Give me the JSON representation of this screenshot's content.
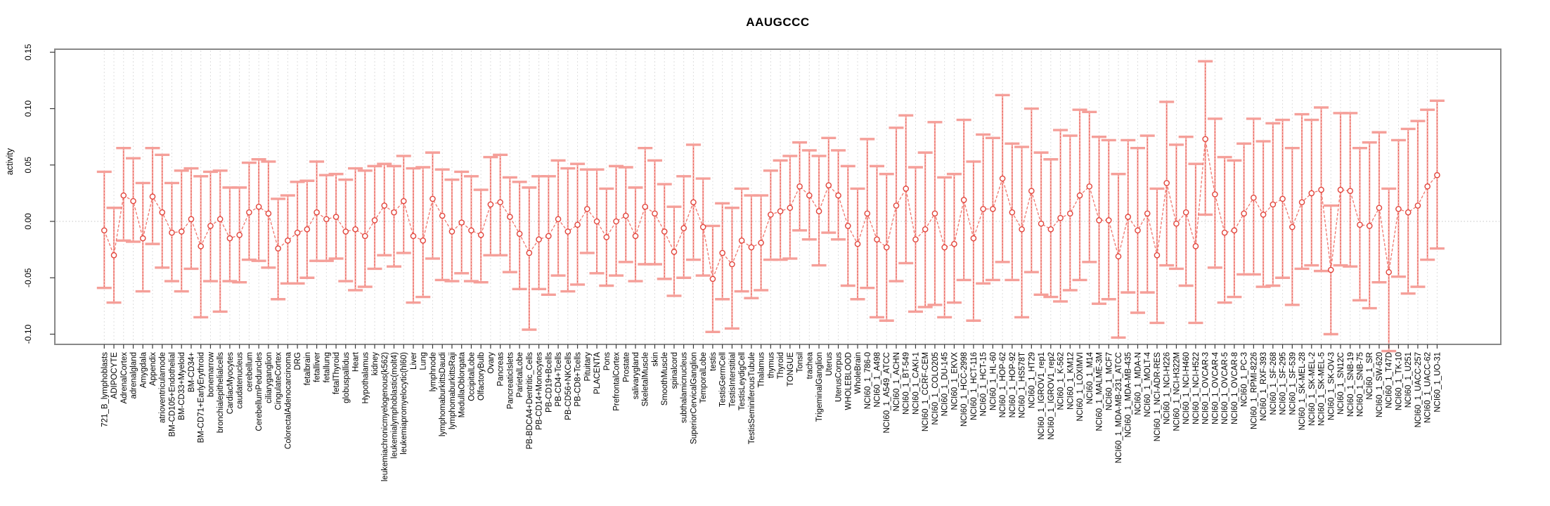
{
  "window": {
    "background": "#ffffff"
  },
  "chart_data": {
    "type": "scatter",
    "subtype": "error-bar-plot",
    "title": "AAUGCCC",
    "xlabel": "",
    "ylabel": "activity",
    "legend": "none",
    "grid": "light dashed vertical gridline per category; dotted horizontal line at 0",
    "marker": "open-circle connected by dashed red line, salmon error bars with caps",
    "ylim": [
      -0.109,
      0.153
    ],
    "ytick_values": [
      0.15,
      0.1,
      0.05,
      0.0,
      -0.05,
      -0.1
    ],
    "ytick_labels": [
      "0.15",
      "0.10",
      "0.05",
      "0.00",
      "-0.05",
      "-0.10"
    ],
    "x_label_rotation_deg": 90,
    "categories": [
      "721_B_lymphoblasts",
      "ADIPOCYTE",
      "AdrenalCortex",
      "adrenalgland",
      "Amygdala",
      "Appendix",
      "atrioventricularnode",
      "BM-CD105+Endothelial",
      "BM-CD33+Myeloid",
      "BM-CD34+",
      "BM-CD71+EarlyErythroid",
      "bonemarrow",
      "bronchialepithelialcells",
      "CardiacMyocytes",
      "caudatenucleus",
      "cerebellum",
      "CerebellumPeduncles",
      "ciliaryganglion",
      "CingulateCortex",
      "ColorectalAdenocarcinoma",
      "DRG",
      "fetalbrain",
      "fetalliver",
      "fetallung",
      "fetalThyroid",
      "globuspallidus",
      "Heart",
      "Hypothalamus",
      "kidney",
      "leukemiachronicmyelogenous(k562)",
      "leukemialymphoblastic(molt4)",
      "leukemiapromyelocytic(hl60)",
      "Liver",
      "Lung",
      "lymphnode",
      "lymphomaburkittsDaudi",
      "lymphomaburkittsRaji",
      "MedullaOblongata",
      "OccipitalLobe",
      "OlfactoryBulb",
      "Ovary",
      "Pancreas",
      "PancreaticIslets",
      "ParietalLobe",
      "PB-BDCA4+Dentritic_Cells",
      "PB-CD14+Monocytes",
      "PB-CD19+Bcells",
      "PB-CD4+Tcells",
      "PB-CD56+NKCells",
      "PB-CD8+Tcells",
      "Pituitary",
      "PLACENTA",
      "Pons",
      "PrefrontalCortex",
      "Prostate",
      "salivarygland",
      "SkeletalMuscle",
      "skin",
      "SmoothMuscle",
      "spinalcord",
      "subthalamicnucleus",
      "SuperiorCervicalGanglion",
      "TemporalLobe",
      "testis",
      "TestisGermCell",
      "TestisInterstitial",
      "TestisLeydigCell",
      "TestisSeminiferousTubule",
      "Thalamus",
      "thymus",
      "Thyroid",
      "TONGUE",
      "Tonsil",
      "trachea",
      "TrigeminalGanglion",
      "Uterus",
      "UterusCorpus",
      "WHOLEBLOOD",
      "WholeBrain",
      "NCI60_1_786-0",
      "NCI60_1_A498",
      "NCI60_1_A549_ATCC",
      "NCI60_1_ACHN",
      "NCI60_1_BT-549",
      "NCI60_1_CAKI-1",
      "NCI60_1_CCRF-CEM",
      "NCI60_1_COLO205",
      "NCI60_1_DU-145",
      "NCI60_1_EKVX",
      "NCI60_1_HCC-2998",
      "NCI60_1_HCT-116",
      "NCI60_1_HCT-15",
      "NCI60_1_HL-60",
      "NCI60_1_HOP-62",
      "NCI60_1_HOP-92",
      "NCI60_1_HS578T",
      "NCI60_1_HT29",
      "NCI60_1_IGROV1_rep1",
      "NCI60_1_IGROV1_rep2",
      "NCI60_1_K-562",
      "NCI60_1_KM12",
      "NCI60_1_LOXIMVI",
      "NCI60_1_M14",
      "NCI60_1_MALME-3M",
      "NCI60_1_MCF7",
      "NCI60_1_MDA-MB-231_ATCC",
      "NCI60_1_MDA-MB-435",
      "NCI60_1_MDA-N",
      "NCI60_1_MOLT-4",
      "NCI60_1_NCI-ADR-RES",
      "NCI60_1_NCI-H226",
      "NCI60_1_NCI-H322M",
      "NCI60_1_NCI-H460",
      "NCI60_1_NCI-H522",
      "NCI60_1_OVCAR-3",
      "NCI60_1_OVCAR-4",
      "NCI60_1_OVCAR-5",
      "NCI60_1_OVCAR-8",
      "NCI60_1_PC-3",
      "NCI60_1_RPMI-8226",
      "NCI60_1_RXF-393",
      "NCI60_1_SF-268",
      "NCI60_1_SF-295",
      "NCI60_1_SF-539",
      "NCI60_1_SK-MEL-28",
      "NCI60_1_SK-MEL-2",
      "NCI60_1_SK-MEL-5",
      "NCI60_1_SK-OV-3",
      "NCI60_1_SN12C",
      "NCI60_1_SNB-19",
      "NCI60_1_SNB-75",
      "NCI60_1_SR",
      "NCI60_1_SW-620",
      "NCI60_1_T47D",
      "NCI60_1_TK-10",
      "NCI60_1_U251",
      "NCI60_1_UACC-257",
      "NCI60_1_UACC-62",
      "NCI60_1_UO-31"
    ],
    "series": [
      {
        "name": "activity",
        "mean": [
          -0.008,
          -0.03,
          0.023,
          0.018,
          -0.015,
          0.022,
          0.008,
          -0.01,
          -0.009,
          0.002,
          -0.022,
          -0.004,
          0.002,
          -0.015,
          -0.012,
          0.008,
          0.013,
          0.007,
          -0.024,
          -0.017,
          -0.01,
          -0.007,
          0.008,
          0.002,
          0.004,
          -0.009,
          -0.007,
          -0.013,
          0.001,
          0.014,
          0.008,
          0.018,
          -0.013,
          -0.017,
          0.02,
          0.005,
          -0.009,
          -0.001,
          -0.008,
          -0.012,
          0.015,
          0.017,
          0.004,
          -0.011,
          -0.028,
          -0.016,
          -0.013,
          0.002,
          -0.009,
          -0.003,
          0.011,
          0.0,
          -0.014,
          0.0,
          0.005,
          -0.013,
          0.013,
          0.007,
          -0.009,
          -0.027,
          -0.006,
          0.017,
          -0.005,
          -0.051,
          -0.028,
          -0.038,
          -0.017,
          -0.023,
          -0.019,
          0.006,
          0.009,
          0.012,
          0.031,
          0.023,
          0.009,
          0.032,
          0.023,
          -0.004,
          -0.02,
          0.007,
          -0.016,
          -0.023,
          0.014,
          0.029,
          -0.016,
          -0.007,
          0.007,
          -0.023,
          -0.02,
          0.019,
          -0.015,
          0.011,
          0.011,
          0.038,
          0.008,
          -0.007,
          0.027,
          -0.002,
          -0.007,
          0.003,
          0.007,
          0.023,
          0.031,
          0.001,
          0.001,
          -0.031,
          0.004,
          -0.008,
          0.007,
          -0.03,
          0.034,
          -0.002,
          0.008,
          -0.022,
          0.073,
          0.024,
          -0.01,
          -0.008,
          0.007,
          0.021,
          0.006,
          0.015,
          0.02,
          -0.005,
          0.017,
          0.025,
          0.028,
          -0.043,
          0.028,
          0.027,
          -0.003,
          -0.004,
          0.012,
          -0.045,
          0.011,
          0.008,
          0.014,
          0.031,
          0.041
        ],
        "upper": [
          0.044,
          0.012,
          0.065,
          0.056,
          0.034,
          0.065,
          0.059,
          0.034,
          0.045,
          0.047,
          0.04,
          0.044,
          0.045,
          0.03,
          0.03,
          0.052,
          0.055,
          0.053,
          0.02,
          0.023,
          0.035,
          0.036,
          0.053,
          0.041,
          0.042,
          0.037,
          0.047,
          0.045,
          0.049,
          0.051,
          0.049,
          0.058,
          0.047,
          0.048,
          0.061,
          0.046,
          0.037,
          0.044,
          0.04,
          0.028,
          0.057,
          0.059,
          0.039,
          0.035,
          0.03,
          0.04,
          0.04,
          0.054,
          0.047,
          0.051,
          0.046,
          0.046,
          0.029,
          0.049,
          0.048,
          0.03,
          0.065,
          0.054,
          0.033,
          0.013,
          0.04,
          0.068,
          0.038,
          -0.004,
          0.016,
          0.012,
          0.029,
          0.023,
          0.023,
          0.045,
          0.054,
          0.058,
          0.07,
          0.063,
          0.058,
          0.074,
          0.063,
          0.049,
          0.029,
          0.073,
          0.049,
          0.042,
          0.083,
          0.094,
          0.048,
          0.061,
          0.088,
          0.039,
          0.042,
          0.09,
          0.053,
          0.077,
          0.074,
          0.112,
          0.069,
          0.066,
          0.1,
          0.061,
          0.055,
          0.081,
          0.076,
          0.099,
          0.097,
          0.075,
          0.072,
          0.042,
          0.072,
          0.065,
          0.076,
          0.029,
          0.106,
          0.068,
          0.075,
          0.051,
          0.142,
          0.091,
          0.057,
          0.054,
          0.069,
          0.091,
          0.071,
          0.087,
          0.09,
          0.065,
          0.095,
          0.09,
          0.101,
          0.014,
          0.096,
          0.096,
          0.065,
          0.07,
          0.079,
          0.029,
          0.072,
          0.082,
          0.089,
          0.099,
          0.107
        ],
        "lower": [
          -0.059,
          -0.072,
          -0.017,
          -0.018,
          -0.062,
          -0.02,
          -0.041,
          -0.053,
          -0.062,
          -0.042,
          -0.085,
          -0.053,
          -0.08,
          -0.053,
          -0.054,
          -0.034,
          -0.035,
          -0.041,
          -0.069,
          -0.055,
          -0.055,
          -0.05,
          -0.035,
          -0.035,
          -0.033,
          -0.053,
          -0.061,
          -0.058,
          -0.042,
          -0.03,
          -0.04,
          -0.028,
          -0.072,
          -0.067,
          -0.033,
          -0.052,
          -0.053,
          -0.046,
          -0.053,
          -0.054,
          -0.03,
          -0.03,
          -0.045,
          -0.06,
          -0.096,
          -0.06,
          -0.065,
          -0.048,
          -0.062,
          -0.056,
          -0.028,
          -0.046,
          -0.057,
          -0.048,
          -0.036,
          -0.053,
          -0.038,
          -0.038,
          -0.051,
          -0.066,
          -0.05,
          -0.034,
          -0.048,
          -0.098,
          -0.069,
          -0.095,
          -0.062,
          -0.068,
          -0.061,
          -0.034,
          -0.034,
          -0.033,
          -0.008,
          -0.016,
          -0.039,
          -0.01,
          -0.016,
          -0.057,
          -0.069,
          -0.059,
          -0.085,
          -0.088,
          -0.053,
          -0.037,
          -0.08,
          -0.076,
          -0.074,
          -0.085,
          -0.072,
          -0.052,
          -0.088,
          -0.055,
          -0.052,
          -0.036,
          -0.052,
          -0.085,
          -0.045,
          -0.065,
          -0.067,
          -0.071,
          -0.061,
          -0.052,
          -0.036,
          -0.073,
          -0.069,
          -0.103,
          -0.063,
          -0.081,
          -0.063,
          -0.09,
          -0.039,
          -0.042,
          -0.057,
          -0.09,
          0.006,
          -0.041,
          -0.072,
          -0.067,
          -0.047,
          -0.047,
          -0.058,
          -0.057,
          -0.05,
          -0.074,
          -0.042,
          -0.039,
          -0.044,
          -0.1,
          -0.039,
          -0.04,
          -0.07,
          -0.077,
          -0.054,
          -0.115,
          -0.049,
          -0.064,
          -0.058,
          -0.034,
          -0.024
        ]
      }
    ]
  },
  "colors": {
    "point_stroke": "#e2453c",
    "series_line": "#ef766d",
    "error_bar_light": "#f59f99",
    "error_bar_core": "#e8524a",
    "gridline": "#dedede",
    "zero_line": "#c4c4c4",
    "plot_border": "#888888",
    "tick": "#3c3c3c",
    "text": "#000000",
    "background": "#ffffff"
  }
}
